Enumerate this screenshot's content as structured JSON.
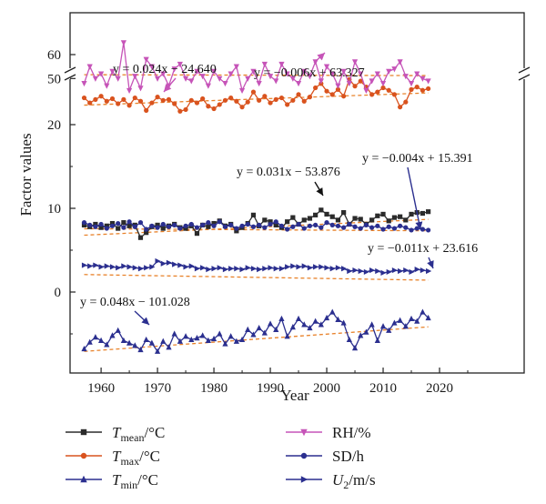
{
  "chart_data": {
    "type": "line",
    "xlabel": "Year",
    "ylabel": "Factor values",
    "x_ticks": [
      "1960",
      "1970",
      "1980",
      "1990",
      "2000",
      "2010",
      "2020"
    ],
    "y_ticks_lower": [
      "0",
      "10",
      "20"
    ],
    "y_ticks_upper": [
      "50",
      "60"
    ],
    "axis_break": true,
    "grid": false,
    "legend_position": "bottom",
    "x": [
      1957,
      1958,
      1959,
      1960,
      1961,
      1962,
      1963,
      1964,
      1965,
      1966,
      1967,
      1968,
      1969,
      1970,
      1971,
      1972,
      1973,
      1974,
      1975,
      1976,
      1977,
      1978,
      1979,
      1980,
      1981,
      1982,
      1983,
      1984,
      1985,
      1986,
      1987,
      1988,
      1989,
      1990,
      1991,
      1992,
      1993,
      1994,
      1995,
      1996,
      1997,
      1998,
      1999,
      2000,
      2001,
      2002,
      2003,
      2004,
      2005,
      2006,
      2007,
      2008,
      2009,
      2010,
      2011,
      2012,
      2013,
      2014,
      2015,
      2016,
      2017,
      2018
    ],
    "series": [
      {
        "name": "Tmean/°C",
        "name_parts": {
          "base": "T",
          "sub": "mean",
          "unit": "/°C"
        },
        "color": "#2b2b2b",
        "marker": "square",
        "values": [
          8.0,
          7.8,
          8.1,
          7.7,
          7.9,
          8.2,
          7.6,
          8.3,
          7.9,
          8.0,
          6.5,
          7.1,
          7.8,
          8.0,
          7.6,
          7.9,
          8.1,
          7.7,
          7.6,
          7.9,
          7.0,
          8.0,
          7.8,
          8.2,
          8.5,
          7.9,
          8.1,
          7.3,
          7.7,
          8.2,
          9.2,
          7.9,
          8.6,
          8.4,
          8.0,
          7.7,
          8.4,
          8.9,
          8.1,
          8.6,
          8.8,
          9.2,
          9.8,
          9.3,
          9.0,
          8.6,
          9.5,
          8.1,
          8.8,
          8.7,
          8.1,
          8.6,
          9.1,
          9.3,
          8.5,
          8.9,
          9.0,
          8.6,
          9.3,
          9.5,
          9.4,
          9.6
        ],
        "trend": {
          "label": "y = 0.031x − 53.876",
          "slope": 0.031,
          "intercept": -53.876
        }
      },
      {
        "name": "Tmax/°C",
        "name_parts": {
          "base": "T",
          "sub": "max",
          "unit": "/°C"
        },
        "color": "#d9531e",
        "marker": "circle",
        "values": [
          23.2,
          22.6,
          23.0,
          23.4,
          22.8,
          23.1,
          22.5,
          23.0,
          22.3,
          23.2,
          22.8,
          21.7,
          22.6,
          23.3,
          22.9,
          23.0,
          22.5,
          21.6,
          21.8,
          22.9,
          22.6,
          23.1,
          22.2,
          21.9,
          22.4,
          22.9,
          23.2,
          22.8,
          22.1,
          22.7,
          23.9,
          22.9,
          23.4,
          22.6,
          23.0,
          23.2,
          22.4,
          22.9,
          23.6,
          22.8,
          23.3,
          24.4,
          24.9,
          24.0,
          23.6,
          24.2,
          23.4,
          25.4,
          24.6,
          25.2,
          24.5,
          23.6,
          23.9,
          24.4,
          24.1,
          23.6,
          22.1,
          22.7,
          24.2,
          24.5,
          24.1,
          24.3
        ],
        "trend": {
          "label": "y = 0.024x − 24.640",
          "slope": 0.024,
          "intercept": -24.64
        }
      },
      {
        "name": "Tmin/°C",
        "name_parts": {
          "base": "T",
          "sub": "min",
          "unit": "/°C"
        },
        "color": "#2b2f8f",
        "marker": "triangle-up",
        "values": [
          -6.8,
          -6.0,
          -5.4,
          -5.8,
          -6.3,
          -5.2,
          -4.6,
          -5.8,
          -6.1,
          -6.4,
          -6.9,
          -5.7,
          -6.1,
          -7.1,
          -5.9,
          -6.6,
          -5.0,
          -5.9,
          -5.3,
          -5.7,
          -5.5,
          -5.2,
          -5.8,
          -5.6,
          -5.0,
          -6.2,
          -5.3,
          -5.9,
          -5.7,
          -4.5,
          -5.1,
          -4.3,
          -4.9,
          -3.8,
          -4.5,
          -3.2,
          -5.3,
          -4.2,
          -3.2,
          -3.9,
          -4.3,
          -3.5,
          -3.9,
          -3.1,
          -2.4,
          -3.3,
          -3.7,
          -5.7,
          -6.7,
          -5.2,
          -4.8,
          -3.9,
          -5.8,
          -4.1,
          -4.6,
          -3.7,
          -3.4,
          -4.1,
          -3.2,
          -3.5,
          -2.4,
          -3.1
        ],
        "trend": {
          "label": "y = 0.048x − 101.028",
          "slope": 0.048,
          "intercept": -101.028
        }
      },
      {
        "name": "RH/%",
        "name_parts": {
          "base": "RH",
          "sub": "",
          "unit": "/%"
        },
        "color": "#c654b8",
        "marker": "triangle-down",
        "values": [
          48,
          55,
          50,
          52,
          47,
          53,
          50,
          65,
          45,
          51,
          46,
          58,
          55,
          50,
          52,
          47,
          54,
          56,
          50,
          49,
          53,
          51,
          47,
          53,
          50,
          48,
          52,
          55,
          45,
          50,
          53,
          48,
          56,
          51,
          49,
          56,
          52,
          50,
          48,
          53,
          51,
          57,
          49,
          55,
          52,
          47,
          53,
          48,
          57,
          52,
          45,
          49,
          52,
          48,
          53,
          54,
          57,
          51,
          48,
          52,
          50,
          49
        ],
        "trend": {
          "label": "y = −0.006x + 63.327",
          "slope": -0.006,
          "intercept": 63.327
        }
      },
      {
        "name": "SD/h",
        "name_parts": {
          "base": "SD",
          "sub": "",
          "unit": "/h"
        },
        "color": "#2b2f8f",
        "marker": "circle",
        "values": [
          8.3,
          8.0,
          7.8,
          8.1,
          7.6,
          7.9,
          8.2,
          7.7,
          8.4,
          7.8,
          8.3,
          7.5,
          7.9,
          7.7,
          8.1,
          7.8,
          8.0,
          7.6,
          7.9,
          8.1,
          7.7,
          8.0,
          8.3,
          7.9,
          8.4,
          7.8,
          8.0,
          7.6,
          7.9,
          8.1,
          7.8,
          8.0,
          7.7,
          8.1,
          8.4,
          7.9,
          7.5,
          7.8,
          8.1,
          7.6,
          7.9,
          8.0,
          7.7,
          8.3,
          8.0,
          7.9,
          7.7,
          8.1,
          7.8,
          7.6,
          8.0,
          7.7,
          7.9,
          7.5,
          7.8,
          7.6,
          7.9,
          7.7,
          7.4,
          7.6,
          7.5,
          7.4
        ],
        "trend": {
          "label": "y = −0.004x + 15.391",
          "slope": -0.004,
          "intercept": 15.391
        }
      },
      {
        "name": "U2/m/s",
        "name_parts": {
          "base": "U",
          "sub": "2",
          "unit": "/m/s"
        },
        "color": "#2b2f8f",
        "marker": "triangle-right",
        "values": [
          3.2,
          3.1,
          3.2,
          3.0,
          3.1,
          3.0,
          2.9,
          3.1,
          3.0,
          2.9,
          2.8,
          2.9,
          3.0,
          3.7,
          3.4,
          3.5,
          3.3,
          3.2,
          3.0,
          3.1,
          2.8,
          2.9,
          2.7,
          2.8,
          2.9,
          2.7,
          2.8,
          2.8,
          2.7,
          2.9,
          2.8,
          2.7,
          2.8,
          2.9,
          2.8,
          2.8,
          3.0,
          3.1,
          3.0,
          3.1,
          2.9,
          3.0,
          3.0,
          2.9,
          2.8,
          2.9,
          2.8,
          2.5,
          2.6,
          2.5,
          2.4,
          2.6,
          2.5,
          2.3,
          2.4,
          2.6,
          2.5,
          2.6,
          2.4,
          2.7,
          2.6,
          2.5
        ],
        "trend": {
          "label": "y = −0.011x + 23.616",
          "slope": -0.011,
          "intercept": 23.616
        }
      }
    ]
  }
}
